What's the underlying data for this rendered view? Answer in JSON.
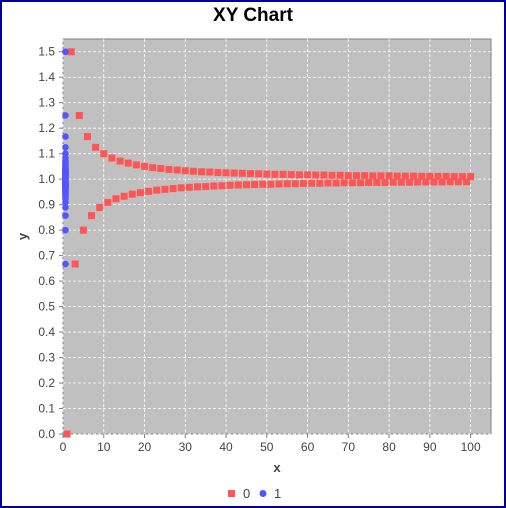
{
  "colors": {
    "frame_border": "#000099",
    "plot_background": "#c0c0c0",
    "grid": "#ffffff",
    "axis": "#808080",
    "series_0": "#ff5555",
    "series_1": "#5555ff"
  },
  "chart_data": {
    "type": "scatter",
    "title": "XY Chart",
    "xlabel": "x",
    "ylabel": "y",
    "xlim": [
      0,
      105
    ],
    "ylim": [
      0,
      1.55
    ],
    "x_ticks": [
      "0",
      "10",
      "20",
      "30",
      "40",
      "50",
      "60",
      "70",
      "80",
      "90",
      "100"
    ],
    "y_ticks": [
      "0.0",
      "0.1",
      "0.2",
      "0.3",
      "0.4",
      "0.5",
      "0.6",
      "0.7",
      "0.8",
      "0.9",
      "1.0",
      "1.1",
      "1.2",
      "1.3",
      "1.4",
      "1.5"
    ],
    "grid": true,
    "legend": "bottom-center",
    "series": [
      {
        "name": "0",
        "marker": "square",
        "points": [
          [
            1,
            0.0
          ],
          [
            2,
            1.5
          ],
          [
            3,
            0.667
          ],
          [
            4,
            1.25
          ],
          [
            5,
            0.8
          ],
          [
            6,
            1.167
          ],
          [
            7,
            0.857
          ],
          [
            8,
            1.125
          ],
          [
            9,
            0.889
          ],
          [
            10,
            1.1
          ],
          [
            11,
            0.909
          ],
          [
            12,
            1.083
          ],
          [
            13,
            0.923
          ],
          [
            14,
            1.071
          ],
          [
            15,
            0.933
          ],
          [
            16,
            1.063
          ],
          [
            17,
            0.941
          ],
          [
            18,
            1.056
          ],
          [
            19,
            0.947
          ],
          [
            20,
            1.05
          ],
          [
            21,
            0.952
          ],
          [
            22,
            1.045
          ],
          [
            23,
            0.957
          ],
          [
            24,
            1.042
          ],
          [
            25,
            0.96
          ],
          [
            26,
            1.038
          ],
          [
            27,
            0.963
          ],
          [
            28,
            1.036
          ],
          [
            29,
            0.966
          ],
          [
            30,
            1.033
          ],
          [
            31,
            0.968
          ],
          [
            32,
            1.031
          ],
          [
            33,
            0.97
          ],
          [
            34,
            1.029
          ],
          [
            35,
            0.971
          ],
          [
            36,
            1.028
          ],
          [
            37,
            0.973
          ],
          [
            38,
            1.026
          ],
          [
            39,
            0.974
          ],
          [
            40,
            1.025
          ],
          [
            41,
            0.976
          ],
          [
            42,
            1.024
          ],
          [
            43,
            0.977
          ],
          [
            44,
            1.023
          ],
          [
            45,
            0.978
          ],
          [
            46,
            1.022
          ],
          [
            47,
            0.979
          ],
          [
            48,
            1.021
          ],
          [
            49,
            0.98
          ],
          [
            50,
            1.02
          ],
          [
            51,
            0.98
          ],
          [
            52,
            1.019
          ],
          [
            53,
            0.981
          ],
          [
            54,
            1.019
          ],
          [
            55,
            0.982
          ],
          [
            56,
            1.018
          ],
          [
            57,
            0.982
          ],
          [
            58,
            1.017
          ],
          [
            59,
            0.983
          ],
          [
            60,
            1.017
          ],
          [
            61,
            0.984
          ],
          [
            62,
            1.016
          ],
          [
            63,
            0.984
          ],
          [
            64,
            1.016
          ],
          [
            65,
            0.985
          ],
          [
            66,
            1.015
          ],
          [
            67,
            0.985
          ],
          [
            68,
            1.015
          ],
          [
            69,
            0.986
          ],
          [
            70,
            1.014
          ],
          [
            71,
            0.986
          ],
          [
            72,
            1.014
          ],
          [
            73,
            0.986
          ],
          [
            74,
            1.014
          ],
          [
            75,
            0.987
          ],
          [
            76,
            1.013
          ],
          [
            77,
            0.987
          ],
          [
            78,
            1.013
          ],
          [
            79,
            0.987
          ],
          [
            80,
            1.013
          ],
          [
            81,
            0.988
          ],
          [
            82,
            1.012
          ],
          [
            83,
            0.988
          ],
          [
            84,
            1.012
          ],
          [
            85,
            0.988
          ],
          [
            86,
            1.012
          ],
          [
            87,
            0.989
          ],
          [
            88,
            1.011
          ],
          [
            89,
            0.989
          ],
          [
            90,
            1.011
          ],
          [
            91,
            0.989
          ],
          [
            92,
            1.011
          ],
          [
            93,
            0.989
          ],
          [
            94,
            1.011
          ],
          [
            95,
            0.99
          ],
          [
            96,
            1.01
          ],
          [
            97,
            0.99
          ],
          [
            98,
            1.01
          ],
          [
            99,
            0.99
          ],
          [
            100,
            1.01
          ]
        ]
      },
      {
        "name": "1",
        "marker": "circle",
        "points": [
          [
            0.6,
            1.5
          ],
          [
            0.6,
            0.667
          ],
          [
            0.6,
            1.25
          ],
          [
            0.6,
            0.8
          ],
          [
            0.6,
            1.167
          ],
          [
            0.6,
            0.857
          ],
          [
            0.6,
            1.125
          ],
          [
            0.6,
            0.889
          ],
          [
            0.6,
            1.1
          ],
          [
            0.6,
            0.909
          ],
          [
            0.6,
            1.083
          ],
          [
            0.6,
            0.923
          ],
          [
            0.6,
            1.071
          ],
          [
            0.6,
            0.933
          ],
          [
            0.6,
            1.063
          ],
          [
            0.6,
            0.941
          ],
          [
            0.6,
            1.056
          ],
          [
            0.6,
            0.947
          ],
          [
            0.6,
            1.05
          ],
          [
            0.6,
            0.952
          ],
          [
            0.6,
            1.045
          ],
          [
            0.6,
            0.957
          ],
          [
            0.6,
            1.042
          ],
          [
            0.6,
            0.96
          ],
          [
            0.6,
            1.038
          ],
          [
            0.6,
            0.963
          ],
          [
            0.6,
            1.036
          ],
          [
            0.6,
            0.966
          ],
          [
            0.6,
            1.033
          ],
          [
            0.6,
            0.968
          ],
          [
            0.6,
            1.031
          ],
          [
            0.6,
            0.97
          ],
          [
            0.6,
            1.029
          ],
          [
            0.6,
            0.971
          ],
          [
            0.6,
            1.028
          ],
          [
            0.6,
            0.973
          ],
          [
            0.6,
            1.026
          ],
          [
            0.6,
            0.974
          ],
          [
            0.6,
            1.025
          ],
          [
            0.6,
            0.976
          ],
          [
            0.6,
            1.024
          ],
          [
            0.6,
            0.977
          ],
          [
            0.6,
            1.022
          ],
          [
            0.6,
            0.979
          ],
          [
            0.6,
            1.02
          ],
          [
            0.6,
            0.98
          ],
          [
            0.6,
            1.018
          ],
          [
            0.6,
            0.982
          ],
          [
            0.6,
            1.016
          ],
          [
            0.6,
            0.984
          ],
          [
            0.6,
            1.014
          ],
          [
            0.6,
            0.986
          ],
          [
            0.6,
            1.012
          ],
          [
            0.6,
            0.988
          ],
          [
            0.6,
            1.01
          ],
          [
            0.6,
            0.99
          ],
          [
            0.6,
            1.008
          ],
          [
            0.6,
            0.992
          ],
          [
            0.6,
            1.005
          ],
          [
            0.6,
            0.995
          ],
          [
            0.6,
            1.003
          ],
          [
            0.6,
            0.998
          ],
          [
            0.6,
            1.0
          ]
        ]
      }
    ]
  }
}
